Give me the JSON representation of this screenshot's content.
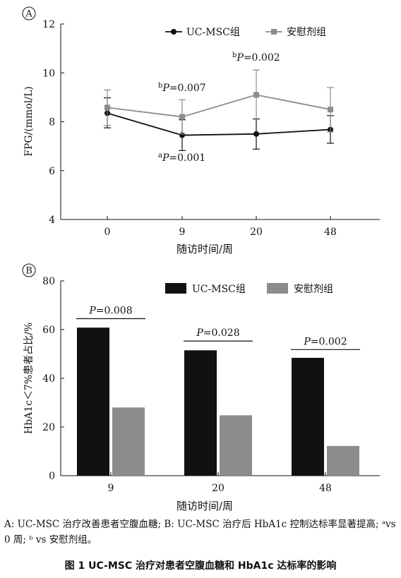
{
  "figure_caption": "A: UC-MSC 治疗改善患者空腹血糖; B: UC-MSC 治疗后 HbA1c 控制达标率显著提高; ᵃvs 0 周; ᵇ vs 安慰剂组。",
  "figure_title": "图 1   UC-MSC 治疗对患者空腹血糖和 HbA1c 达标率的影响",
  "chart_data": [
    {
      "panel": "A",
      "type": "line",
      "ylabel": "FPG/(mmol/L)",
      "xlabel": "随访时间/周",
      "categories": [
        "0",
        "9",
        "20",
        "48"
      ],
      "ylim": [
        4,
        12
      ],
      "yticks": [
        4,
        6,
        8,
        10,
        12
      ],
      "legend_position": "top-right",
      "series": [
        {
          "name": "UC-MSC组",
          "color": "#111111",
          "marker": "circle",
          "values": [
            8.35,
            7.45,
            7.5,
            7.68
          ],
          "err_low": [
            7.75,
            6.82,
            6.88,
            7.12
          ],
          "err_high": [
            8.98,
            8.08,
            8.12,
            8.25
          ]
        },
        {
          "name": "安慰剂组",
          "color": "#8c8c8c",
          "marker": "square",
          "values": [
            8.58,
            8.2,
            9.1,
            8.5
          ],
          "err_low": [
            7.85,
            7.5,
            8.1,
            7.58
          ],
          "err_high": [
            9.3,
            8.9,
            10.12,
            9.4
          ]
        }
      ],
      "annotations": [
        {
          "sup": "a",
          "text": "P=0.001",
          "category": "9",
          "y": 6.4
        },
        {
          "sup": "b",
          "text": "P=0.007",
          "category": "9",
          "y": 9.25
        },
        {
          "sup": "b",
          "text": "P=0.002",
          "category": "20",
          "y": 10.5
        }
      ]
    },
    {
      "panel": "B",
      "type": "bar",
      "ylabel": "HbA1c＜7%患者占比/%",
      "xlabel": "随访时间/周",
      "categories": [
        "9",
        "20",
        "48"
      ],
      "ylim": [
        0,
        80
      ],
      "yticks": [
        0,
        20,
        40,
        60,
        80
      ],
      "legend_position": "top-right",
      "series": [
        {
          "name": "UC-MSC组",
          "color": "#111111",
          "values": [
            60.8,
            51.5,
            48.4
          ]
        },
        {
          "name": "安慰剂组",
          "color": "#8c8c8c",
          "values": [
            28.0,
            24.8,
            12.2
          ]
        }
      ],
      "annotations": [
        {
          "text": "P=0.008",
          "category": "9",
          "y": 64.5
        },
        {
          "text": "P=0.028",
          "category": "20",
          "y": 55.3
        },
        {
          "text": "P=0.002",
          "category": "48",
          "y": 51.8
        }
      ]
    }
  ]
}
